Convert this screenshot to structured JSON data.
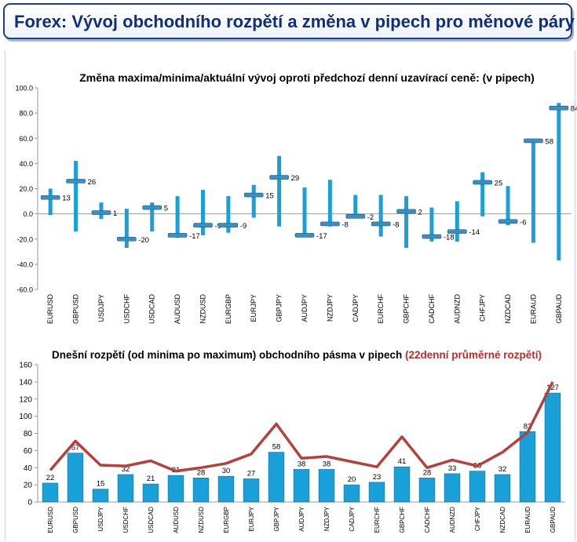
{
  "header": {
    "title": "Forex: Vývoj obchodního rozpětí a změna v pipech pro měnové páry"
  },
  "chart_data": [
    {
      "type": "bar",
      "title": "Změna maxima/minima/aktuální vývoj oproti předchozí denní uzavírací ceně: (v pipech)",
      "categories": [
        "EURUSD",
        "GBPUSD",
        "USDJPY",
        "USDCHF",
        "USDCAD",
        "AUDUSD",
        "NZDUSD",
        "EURGBP",
        "EURJPY",
        "GBPJPY",
        "AUDJPY",
        "NZDJPY",
        "CADJPY",
        "EURCHF",
        "GBPCHF",
        "CADCHF",
        "AUDNZD",
        "CHFJPY",
        "NZDCAD",
        "EURAUD",
        "GBPAUD"
      ],
      "series": [
        {
          "name": "high",
          "values": [
            20,
            42,
            9,
            4,
            9,
            14,
            19,
            14,
            23,
            46,
            21,
            27,
            15,
            15,
            14,
            5,
            10,
            33,
            22,
            57,
            88
          ]
        },
        {
          "name": "low",
          "values": [
            -1,
            -14,
            -4,
            -27,
            -14,
            -19,
            -17,
            -15,
            -3,
            -10,
            -17,
            -10,
            -3,
            -18,
            -27,
            -22,
            -22,
            -2,
            -9,
            -23,
            -37
          ]
        },
        {
          "name": "current",
          "values": [
            13,
            26,
            1,
            -20,
            5,
            -17,
            -9,
            -9,
            15,
            29,
            -17,
            -8,
            -2,
            -8,
            2,
            -18,
            -14,
            25,
            -6,
            58,
            84
          ]
        }
      ],
      "value_labels": [
        "13",
        "26",
        "1",
        "-20",
        "5",
        "-17",
        "-9",
        "-9",
        "15",
        "29",
        "-17",
        "-8",
        "-2",
        "-8",
        "2",
        "-18",
        "-14",
        "25",
        "-6",
        "58",
        "84"
      ],
      "yticks": [
        "100.0",
        "80.0",
        "60.0",
        "40.0",
        "20.0",
        "0.0",
        "-20.0",
        "-40.0",
        "-60.0"
      ],
      "ylim": [
        -60,
        100
      ],
      "grid": false
    },
    {
      "type": "bar",
      "title": "Dnešní rozpětí (od minima po maximum) obchodního pásma v pipech",
      "title_suffix": "(22denní průměrné rozpětí)",
      "categories": [
        "EURUSD",
        "GBPUSD",
        "USDJPY",
        "USDCHF",
        "USDCAD",
        "AUDUSD",
        "NZDUSD",
        "EURGBP",
        "EURJPY",
        "GBPJPY",
        "AUDJPY",
        "NZDJPY",
        "CADJPY",
        "EURCHF",
        "GBPCHF",
        "CADCHF",
        "AUDNZD",
        "CHFJPY",
        "NZDCAD",
        "EURAUD",
        "GBPAUD"
      ],
      "series": [
        {
          "values": [
            22,
            57,
            15,
            32,
            21,
            31,
            28,
            30,
            27,
            58,
            38,
            38,
            20,
            23,
            41,
            28,
            33,
            36,
            32,
            82,
            127
          ]
        },
        {
          "name": "22denní průměrné rozpětí",
          "values": [
            37,
            71,
            43,
            42,
            48,
            36,
            40,
            45,
            56,
            91,
            51,
            53,
            47,
            41,
            76,
            40,
            49,
            42,
            58,
            81,
            140
          ]
        }
      ],
      "value_labels": [
        "22",
        "57",
        "15",
        "32",
        "21",
        "31",
        "28",
        "30",
        "27",
        "58",
        "38",
        "38",
        "20",
        "23",
        "41",
        "28",
        "33",
        "36",
        "32",
        "82",
        "127"
      ],
      "yticks": [
        "160",
        "140",
        "120",
        "100",
        "80",
        "60",
        "40",
        "20",
        "0"
      ],
      "ylim": [
        0,
        160
      ],
      "grid": false
    }
  ],
  "colors": {
    "bar": "#1aa0d8",
    "line": "#b5403c",
    "title_accent": "#c62828",
    "header_border": "#1d3f86"
  }
}
